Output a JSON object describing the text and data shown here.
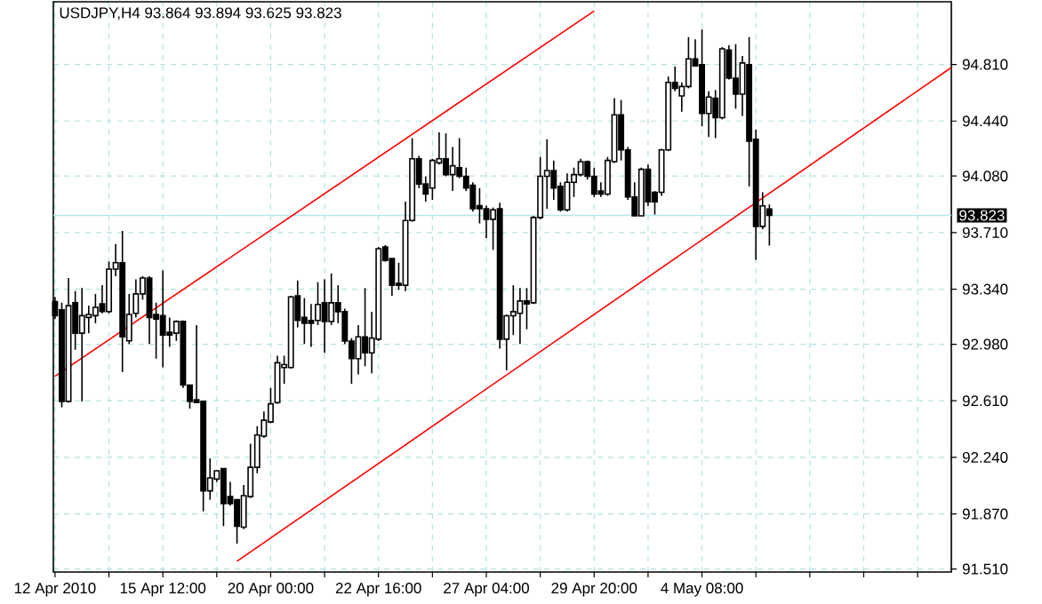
{
  "chart_data": {
    "type": "candlestick",
    "title": "USDJPY,H4 93.864 93.894 93.625 93.823",
    "color": "#000000",
    "categories": [
      "12 Apr 2010",
      null,
      null,
      null,
      null,
      null,
      null,
      null,
      null,
      null,
      null,
      null,
      null,
      null,
      null,
      null,
      "15 Apr 12:00",
      null,
      null,
      null,
      null,
      null,
      null,
      null,
      null,
      null,
      null,
      null,
      null,
      null,
      null,
      null,
      "20 Apr 00:00",
      null,
      null,
      null,
      null,
      null,
      null,
      null,
      null,
      null,
      null,
      null,
      null,
      null,
      null,
      null,
      "22 Apr 16:00",
      null,
      null,
      null,
      null,
      null,
      null,
      null,
      null,
      null,
      null,
      null,
      null,
      null,
      null,
      null,
      "27 Apr 04:00",
      null,
      null,
      null,
      null,
      null,
      null,
      null,
      null,
      null,
      null,
      null,
      null,
      null,
      null,
      null,
      "29 Apr 20:00",
      null,
      null,
      null,
      null,
      null,
      null,
      null,
      null,
      null,
      null,
      null,
      null,
      null,
      null,
      null,
      "4 May 08:00",
      null,
      null,
      null,
      null,
      null,
      null,
      null,
      null,
      null,
      null,
      null,
      null,
      null,
      null,
      null,
      null,
      null,
      null,
      null,
      null,
      null,
      null,
      null,
      null,
      null,
      null,
      null,
      null,
      null,
      null,
      null,
      null,
      null,
      null,
      null,
      null,
      null
    ],
    "ohlc": [
      [
        93.259,
        93.29,
        93.144,
        93.167
      ],
      [
        93.205,
        93.252,
        92.567,
        92.606
      ],
      [
        92.606,
        93.413,
        92.598,
        93.232
      ],
      [
        93.252,
        93.328,
        92.944,
        93.052
      ],
      [
        93.052,
        93.348,
        92.606,
        93.167
      ],
      [
        93.155,
        93.232,
        93.052,
        93.175
      ],
      [
        93.167,
        93.309,
        93.117,
        93.221
      ],
      [
        93.244,
        93.367,
        93.182,
        93.194
      ],
      [
        93.194,
        93.521,
        93.182,
        93.471
      ],
      [
        93.471,
        93.636,
        93.425,
        93.513
      ],
      [
        93.513,
        93.721,
        92.798,
        93.029
      ],
      [
        93.002,
        93.309,
        92.982,
        93.175
      ],
      [
        93.182,
        93.405,
        93.155,
        93.309
      ],
      [
        93.309,
        93.425,
        93.271,
        93.413
      ],
      [
        93.413,
        93.425,
        92.982,
        93.155
      ],
      [
        93.175,
        93.252,
        92.886,
        93.144
      ],
      [
        93.167,
        93.463,
        92.829,
        93.04
      ],
      [
        93.059,
        93.155,
        92.963,
        93.04
      ],
      [
        93.052,
        93.136,
        93.002,
        93.129
      ],
      [
        93.129,
        93.136,
        92.694,
        92.713
      ],
      [
        92.713,
        92.713,
        92.559,
        92.606
      ],
      [
        92.617,
        93.105,
        92.598,
        92.598
      ],
      [
        92.606,
        92.606,
        91.887,
        92.021
      ],
      [
        92.021,
        92.233,
        91.963,
        92.106
      ],
      [
        92.098,
        92.156,
        92.079,
        92.152
      ],
      [
        92.167,
        92.167,
        91.79,
        91.937
      ],
      [
        91.983,
        92.079,
        91.925,
        91.937
      ],
      [
        91.963,
        91.963,
        91.675,
        91.79
      ],
      [
        91.783,
        92.06,
        91.771,
        91.99
      ],
      [
        91.983,
        92.329,
        91.975,
        92.175
      ],
      [
        92.175,
        92.444,
        92.136,
        92.386
      ],
      [
        92.379,
        92.54,
        92.367,
        92.483
      ],
      [
        92.471,
        92.694,
        92.463,
        92.59
      ],
      [
        92.598,
        92.905,
        92.59,
        92.859
      ],
      [
        92.828,
        92.905,
        92.721,
        92.847
      ],
      [
        92.828,
        93.297,
        92.821,
        93.29
      ],
      [
        93.297,
        93.397,
        93.09,
        93.136
      ],
      [
        93.155,
        93.282,
        92.982,
        93.117
      ],
      [
        93.136,
        93.243,
        92.963,
        93.117
      ],
      [
        93.136,
        93.386,
        93.105,
        93.24
      ],
      [
        93.251,
        93.405,
        92.924,
        93.128
      ],
      [
        93.128,
        93.443,
        93.105,
        93.251
      ],
      [
        93.251,
        93.366,
        93.117,
        93.193
      ],
      [
        93.193,
        93.213,
        92.982,
        93.001
      ],
      [
        93.001,
        93.02,
        92.721,
        92.886
      ],
      [
        92.886,
        93.105,
        92.782,
        93.028
      ],
      [
        93.028,
        93.347,
        92.836,
        92.924
      ],
      [
        92.924,
        93.193,
        92.79,
        93.02
      ],
      [
        93.013,
        93.616,
        93.001,
        93.605
      ],
      [
        93.616,
        93.628,
        93.52,
        93.528
      ],
      [
        93.54,
        93.54,
        93.297,
        93.366
      ],
      [
        93.378,
        93.513,
        93.336,
        93.366
      ],
      [
        93.366,
        93.912,
        93.328,
        93.789
      ],
      [
        93.789,
        94.328,
        93.782,
        94.193
      ],
      [
        94.193,
        94.212,
        94.001,
        94.028
      ],
      [
        94.028,
        94.078,
        93.912,
        93.962
      ],
      [
        94.001,
        94.193,
        93.924,
        94.182
      ],
      [
        94.166,
        94.366,
        94.155,
        94.193
      ],
      [
        94.193,
        94.359,
        94.078,
        94.089
      ],
      [
        94.089,
        94.27,
        93.982,
        94.147
      ],
      [
        94.135,
        94.328,
        94.066,
        94.078
      ],
      [
        94.078,
        94.135,
        93.982,
        94.001
      ],
      [
        94.02,
        94.039,
        93.847,
        93.866
      ],
      [
        93.886,
        94.001,
        93.77,
        93.866
      ],
      [
        93.866,
        93.886,
        93.674,
        93.797
      ],
      [
        93.797,
        93.874,
        93.597,
        93.859
      ],
      [
        93.866,
        93.905,
        92.951,
        93.013
      ],
      [
        93.013,
        93.174,
        92.809,
        93.166
      ],
      [
        93.166,
        93.366,
        93.04,
        93.193
      ],
      [
        93.182,
        93.347,
        92.982,
        93.263
      ],
      [
        93.263,
        93.347,
        93.078,
        93.243
      ],
      [
        93.251,
        93.82,
        93.243,
        93.809
      ],
      [
        93.809,
        94.205,
        93.797,
        94.078
      ],
      [
        94.078,
        94.32,
        93.866,
        94.116
      ],
      [
        94.116,
        94.182,
        93.924,
        94.001
      ],
      [
        94.012,
        94.039,
        93.847,
        93.859
      ],
      [
        93.859,
        94.097,
        93.847,
        94.039
      ],
      [
        94.039,
        94.135,
        93.943,
        94.089
      ],
      [
        94.089,
        94.193,
        94.078,
        94.174
      ],
      [
        94.174,
        94.182,
        94.058,
        94.078
      ],
      [
        94.078,
        94.135,
        93.943,
        93.962
      ],
      [
        93.982,
        94.039,
        93.943,
        93.962
      ],
      [
        93.962,
        94.205,
        93.951,
        94.182
      ],
      [
        94.174,
        94.589,
        94.166,
        94.481
      ],
      [
        94.481,
        94.578,
        94.182,
        94.251
      ],
      [
        94.251,
        94.27,
        93.924,
        93.943
      ],
      [
        93.943,
        94.039,
        93.82,
        93.82
      ],
      [
        93.82,
        94.135,
        93.82,
        94.124
      ],
      [
        94.124,
        94.155,
        93.885,
        93.912
      ],
      [
        93.974,
        93.982,
        93.828,
        93.912
      ],
      [
        93.974,
        94.258,
        93.951,
        94.251
      ],
      [
        94.251,
        94.731,
        94.243,
        94.693
      ],
      [
        94.693,
        94.797,
        94.635,
        94.654
      ],
      [
        94.604,
        94.693,
        94.501,
        94.666
      ],
      [
        94.666,
        94.989,
        94.654,
        94.847
      ],
      [
        94.847,
        94.974,
        94.797,
        94.801
      ],
      [
        94.808,
        95.039,
        94.405,
        94.489
      ],
      [
        94.489,
        94.635,
        94.335,
        94.597
      ],
      [
        94.589,
        94.643,
        94.328,
        94.462
      ],
      [
        94.462,
        94.924,
        94.451,
        94.912
      ],
      [
        94.904,
        94.935,
        94.712,
        94.72
      ],
      [
        94.72,
        94.943,
        94.52,
        94.616
      ],
      [
        94.616,
        94.866,
        94.474,
        94.82
      ],
      [
        94.808,
        94.989,
        94.012,
        94.308
      ],
      [
        94.32,
        94.385,
        93.532,
        93.751
      ],
      [
        93.751,
        93.974,
        93.732,
        93.885
      ],
      [
        93.864,
        93.894,
        93.625,
        93.823
      ],
      null,
      null,
      null,
      null,
      null,
      null,
      null,
      null,
      null,
      null,
      null,
      null,
      null,
      null,
      null,
      null,
      null,
      null,
      null,
      null,
      null,
      null,
      null,
      null,
      null,
      null,
      null
    ],
    "series": [
      {
        "type": "line",
        "color": "#ff0000",
        "values": [
          92.77,
          null,
          null,
          null,
          null,
          null,
          null,
          null,
          null,
          null,
          null,
          null,
          null,
          null,
          null,
          null,
          null,
          null,
          null,
          null,
          null,
          null,
          null,
          null,
          null,
          null,
          null,
          null,
          null,
          null,
          null,
          null,
          null,
          null,
          null,
          null,
          null,
          null,
          null,
          null,
          null,
          null,
          null,
          null,
          null,
          null,
          null,
          null,
          null,
          null,
          null,
          null,
          null,
          null,
          null,
          null,
          null,
          null,
          null,
          null,
          null,
          null,
          null,
          null,
          null,
          null,
          null,
          null,
          null,
          null,
          null,
          null,
          null,
          null,
          null,
          null,
          null,
          null,
          null,
          null,
          95.16,
          null,
          null,
          null,
          null,
          null,
          null,
          null,
          null,
          null,
          null,
          null,
          null,
          null,
          null,
          null,
          null,
          null,
          null,
          null,
          null,
          null,
          null,
          null,
          null,
          null,
          null,
          null,
          null,
          null,
          null,
          null,
          null,
          null,
          null,
          null,
          null,
          null,
          null,
          null,
          null,
          null,
          null,
          null,
          null,
          null,
          null,
          null,
          null,
          null,
          null,
          null,
          null,
          null
        ]
      },
      {
        "type": "line",
        "color": "#ff0000",
        "values": [
          null,
          null,
          null,
          null,
          null,
          null,
          null,
          null,
          null,
          null,
          null,
          null,
          null,
          null,
          null,
          null,
          null,
          null,
          null,
          null,
          null,
          null,
          null,
          null,
          null,
          null,
          null,
          91.56,
          null,
          null,
          null,
          null,
          null,
          null,
          null,
          null,
          null,
          null,
          null,
          null,
          null,
          null,
          null,
          null,
          null,
          null,
          null,
          null,
          null,
          null,
          null,
          null,
          null,
          null,
          null,
          null,
          null,
          null,
          null,
          null,
          null,
          null,
          null,
          null,
          null,
          null,
          null,
          null,
          null,
          null,
          null,
          null,
          null,
          null,
          null,
          null,
          null,
          null,
          null,
          null,
          null,
          null,
          null,
          null,
          null,
          null,
          null,
          null,
          null,
          null,
          null,
          null,
          null,
          null,
          null,
          null,
          null,
          null,
          null,
          null,
          null,
          null,
          null,
          null,
          null,
          null,
          null,
          null,
          null,
          null,
          null,
          null,
          null,
          null,
          null,
          null,
          null,
          null,
          null,
          null,
          null,
          null,
          null,
          null,
          null,
          null,
          null,
          null,
          null,
          null,
          null,
          null,
          null,
          94.79
        ]
      }
    ],
    "ylim": [
      91.49,
      95.22
    ],
    "yticks": [
      {
        "value": 91.51,
        "label": "91.510"
      },
      {
        "value": 91.87,
        "label": "91.870"
      },
      {
        "value": 92.24,
        "label": "92.240"
      },
      {
        "value": 92.61,
        "label": "92.610"
      },
      {
        "value": 92.98,
        "label": "92.980"
      },
      {
        "value": 93.34,
        "label": "93.340"
      },
      {
        "value": 93.71,
        "label": "93.710"
      },
      {
        "value": 94.08,
        "label": "94.080"
      },
      {
        "value": 94.44,
        "label": "94.440"
      },
      {
        "value": 94.81,
        "label": "94.810"
      }
    ],
    "grid": true,
    "ref_lines": [
      {
        "axis": "y",
        "value": 93.823,
        "label": "93.823",
        "color": "#b4e8e8"
      }
    ]
  }
}
